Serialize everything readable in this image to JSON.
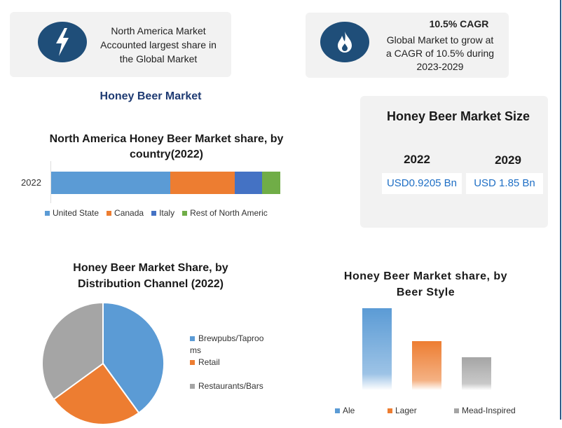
{
  "cards": {
    "north_america": {
      "text_lines": [
        "North America Market",
        "Accounted largest share in",
        "the Global Market"
      ],
      "icon": "lightning-icon"
    },
    "cagr": {
      "heading": "10.5% CAGR",
      "text_lines": [
        "Global Market to grow at",
        "a CAGR of 10.5% during",
        "2023-2029"
      ],
      "icon": "flame-icon"
    }
  },
  "page_title": "Honey Beer Market",
  "market_size": {
    "title": "Honey Beer Market Size",
    "items": [
      {
        "year": "2022",
        "value": "USD0.9205 Bn"
      },
      {
        "year": "2029",
        "value": "USD 1.85 Bn"
      }
    ]
  },
  "colors": {
    "icon_bg": "#1f4e79",
    "title_blue": "#1f3b73",
    "value_blue": "#1f6fc5"
  },
  "chart_data": [
    {
      "type": "bar",
      "orientation": "horizontal-stacked",
      "title": "North America Honey Beer Market share, by country(2022)",
      "categories": [
        "2022"
      ],
      "series": [
        {
          "name": "United State",
          "values": [
            52
          ],
          "color": "#5b9bd5"
        },
        {
          "name": "Canada",
          "values": [
            28
          ],
          "color": "#ed7d31"
        },
        {
          "name": "Italy",
          "values": [
            12
          ],
          "color": "#4472c4"
        },
        {
          "name": "Rest of North Americ",
          "values": [
            8
          ],
          "color": "#70ad47"
        }
      ],
      "legend": "bottom"
    },
    {
      "type": "pie",
      "title": "Honey Beer Market Share, by Distribution Channel (2022)",
      "slices": [
        {
          "name": "Brewpubs/Taproo ms",
          "value": 40,
          "color": "#5b9bd5"
        },
        {
          "name": "Retail",
          "value": 25,
          "color": "#ed7d31"
        },
        {
          "name": "Restaurants/Bars",
          "value": 35,
          "color": "#a5a5a5"
        }
      ],
      "legend": "right"
    },
    {
      "type": "bar",
      "title": "Honey Beer Market share, by Beer Style",
      "categories": [
        "Ale",
        "Lager",
        "Mead-Inspired"
      ],
      "values": [
        50,
        30,
        20
      ],
      "colors": [
        "#5b9bd5",
        "#ed7d31",
        "#a5a5a5"
      ],
      "legend": "bottom",
      "grid": false
    }
  ]
}
